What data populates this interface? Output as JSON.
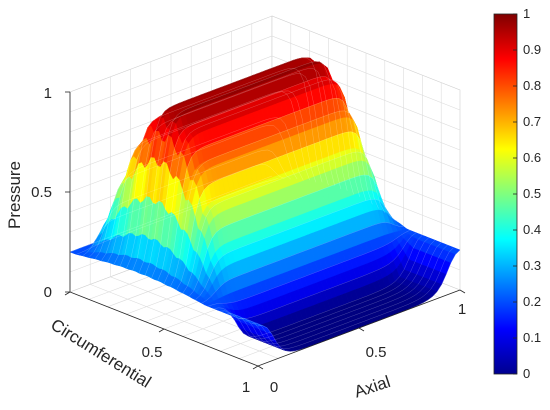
{
  "chart_data": {
    "type": "surface",
    "xlabel": "Circumferential",
    "ylabel": "Axial",
    "zlabel": "Pressure",
    "xlim": [
      0,
      1
    ],
    "ylim": [
      0,
      1
    ],
    "zlim": [
      0,
      1
    ],
    "x_ticks": [
      "0",
      "0.5",
      "1"
    ],
    "y_ticks": [
      "0",
      "0.5",
      "1"
    ],
    "z_ticks": [
      "0",
      "0.5",
      "1"
    ],
    "colormap": "jet",
    "colorbar": {
      "min": 0,
      "max": 1,
      "ticks": [
        "0",
        "0.1",
        "0.2",
        "0.3",
        "0.4",
        "0.5",
        "0.6",
        "0.7",
        "0.8",
        "0.9",
        "1"
      ]
    },
    "surface": {
      "base_pressure": 0.2,
      "peak_pressure": 1.0,
      "circumferential_ripples": 10,
      "axial_profile": "flat plateau with steep edges"
    },
    "grid": true
  }
}
